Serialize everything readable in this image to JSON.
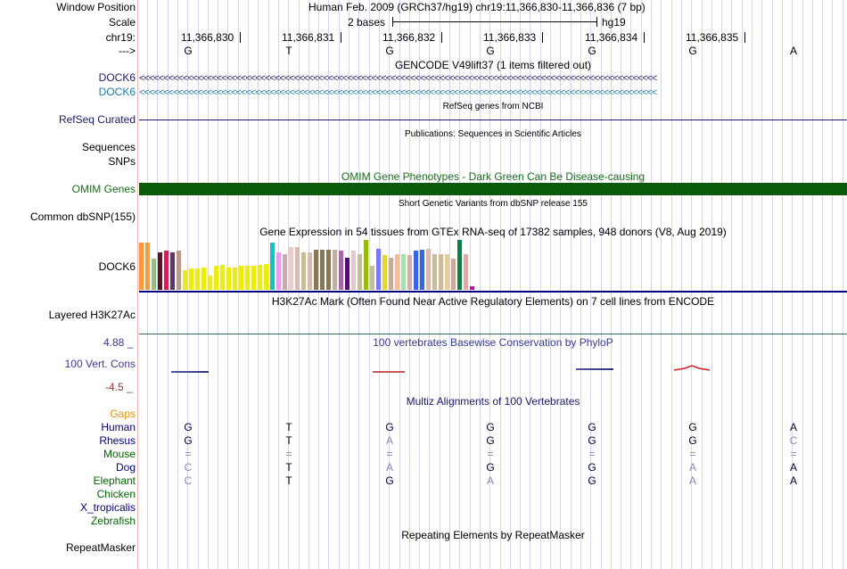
{
  "header": {
    "position_label": "Window Position",
    "position_value": "Human Feb. 2009 (GRCh37/hg19)   chr19:11,366,830-11,366,836 (7 bp)",
    "scale_label": "Scale",
    "scale_value": "2 bases",
    "assembly": "hg19",
    "chrom_label": "chr19:",
    "strand_label": "--->",
    "coordinates": [
      "11,366,830",
      "11,366,831",
      "11,366,832",
      "11,366,833",
      "11,366,834",
      "11,366,835"
    ],
    "bases": [
      "G",
      "T",
      "G",
      "G",
      "G",
      "G",
      "A"
    ]
  },
  "tracks": {
    "gencode": {
      "title": "GENCODE V49lift37 (1 items filtered out)",
      "genes": [
        "DOCK6",
        "DOCK6"
      ],
      "arrows": "<<<<<<<<<<<<<<<<<<<<<<<<<<<<<<<<<<<<<<<<<<<<<<<<<<<<<<<<<<<<<<<<<<<<<<<<<<<<<<<<<<<<<<<<<<<<<<<<<<<<<<<<<<<"
    },
    "refseq": {
      "title": "RefSeq genes from NCBI",
      "label": "RefSeq Curated"
    },
    "publications": {
      "title": "Publications: Sequences in Scientific Articles",
      "label": "Sequences",
      "label2": "SNPs"
    },
    "omim": {
      "title": "OMIM Gene Phenotypes - Dark Green Can Be Disease-causing",
      "label": "OMIM Genes",
      "color": "#0b5a0b"
    },
    "dbsnp": {
      "title": "Short Genetic Variants from dbSNP release 155",
      "label": "Common dbSNP(155)"
    },
    "gtex": {
      "title": "Gene Expression in 54 tissues from GTEx RNA-seq of 17382 samples, 948 donors (V8, Aug 2019)",
      "label": "DOCK6",
      "values": [
        0.95,
        0.95,
        0.62,
        0.75,
        0.78,
        0.75,
        0.78,
        0.4,
        0.42,
        0.42,
        0.45,
        0.28,
        0.48,
        0.5,
        0.45,
        0.45,
        0.48,
        0.48,
        0.48,
        0.5,
        0.52,
        0.95,
        0.75,
        0.72,
        0.85,
        0.85,
        0.75,
        0.75,
        0.8,
        0.8,
        0.8,
        0.8,
        0.78,
        0.65,
        0.78,
        0.72,
        1.0,
        0.48,
        0.82,
        0.7,
        0.65,
        0.72,
        0.72,
        0.7,
        0.78,
        0.8,
        0.82,
        0.72,
        0.72,
        0.72,
        0.62,
        1.0,
        0.72,
        0.08
      ],
      "colors": [
        "#ff9933",
        "#ff9933",
        "#99bb88",
        "#661122",
        "#cc2255",
        "#663366",
        "#bb9988",
        "#eeee00",
        "#eeee00",
        "#eeee00",
        "#eeee00",
        "#eeee00",
        "#eeee00",
        "#eeee00",
        "#eeee00",
        "#eeee00",
        "#eeee00",
        "#eeee00",
        "#eeee00",
        "#eeee00",
        "#eeee00",
        "#00cccc",
        "#ee99ee",
        "#ccaaaa",
        "#eecccc",
        "#ddbbaa",
        "#ccbb99",
        "#ddbbaa",
        "#887755",
        "#887755",
        "#887755",
        "#ccaa99",
        "#aa66aa",
        "#660088",
        "#ddcccc",
        "#ccbb99",
        "#99bb00",
        "#ccbb99",
        "#7777ff",
        "#eedd00",
        "#ccaa99",
        "#ffbb88",
        "#aaddaa",
        "#ddaaaa",
        "#3366ee",
        "#3366ee",
        "#ddbbaa",
        "#ccbb99",
        "#ccbb99",
        "#eecc88",
        "#ccaa99",
        "#008844",
        "#ddaaaa",
        "#cc00cc"
      ]
    },
    "h3k27ac": {
      "title": "H3K27Ac Mark (Often Found Near Active Regulatory Elements) on 7 cell lines from ENCODE",
      "label": "Layered H3K27Ac"
    },
    "phylop": {
      "title": "100 vertebrates Basewise Conservation by PhyloP",
      "label": "100 Vert. Cons",
      "max": "4.88 _",
      "min": "-4.5 _"
    },
    "multiz": {
      "title": "Multiz Alignments of 100 Vertebrates",
      "gaps_label": "Gaps",
      "species": [
        {
          "name": "Human",
          "color": "#000080",
          "bases": [
            "G",
            "T",
            "G",
            "G",
            "G",
            "G",
            "A"
          ],
          "match": [
            false,
            false,
            false,
            false,
            false,
            false,
            false
          ]
        },
        {
          "name": "Rhesus",
          "color": "#000080",
          "bases": [
            "G",
            "T",
            "A",
            "G",
            "G",
            "G",
            "C"
          ],
          "match": [
            false,
            false,
            true,
            false,
            false,
            false,
            true
          ]
        },
        {
          "name": "Mouse",
          "color": "#006600",
          "bases": [
            "=",
            "=",
            "=",
            "=",
            "=",
            "=",
            "="
          ],
          "match": [
            true,
            true,
            true,
            true,
            true,
            true,
            true
          ]
        },
        {
          "name": "Dog",
          "color": "#000080",
          "bases": [
            "C",
            "T",
            "A",
            "G",
            "G",
            "A",
            "A"
          ],
          "match": [
            true,
            false,
            true,
            false,
            false,
            true,
            false
          ]
        },
        {
          "name": "Elephant",
          "color": "#006600",
          "bases": [
            "C",
            "T",
            "G",
            "A",
            "G",
            "A",
            "A"
          ],
          "match": [
            true,
            false,
            false,
            true,
            false,
            true,
            false
          ]
        },
        {
          "name": "Chicken",
          "color": "#006600",
          "bases": [
            "",
            "",
            "",
            "",
            "",
            "",
            ""
          ],
          "match": [
            false,
            false,
            false,
            false,
            false,
            false,
            false
          ]
        },
        {
          "name": "X_tropicalis",
          "color": "#000080",
          "bases": [
            "",
            "",
            "",
            "",
            "",
            "",
            ""
          ],
          "match": [
            false,
            false,
            false,
            false,
            false,
            false,
            false
          ]
        },
        {
          "name": "Zebrafish",
          "color": "#006600",
          "bases": [
            "",
            "",
            "",
            "",
            "",
            "",
            ""
          ],
          "match": [
            false,
            false,
            false,
            false,
            false,
            false,
            false
          ]
        }
      ]
    },
    "repeatmasker": {
      "title": "Repeating Elements by RepeatMasker",
      "label": "RepeatMasker"
    }
  }
}
